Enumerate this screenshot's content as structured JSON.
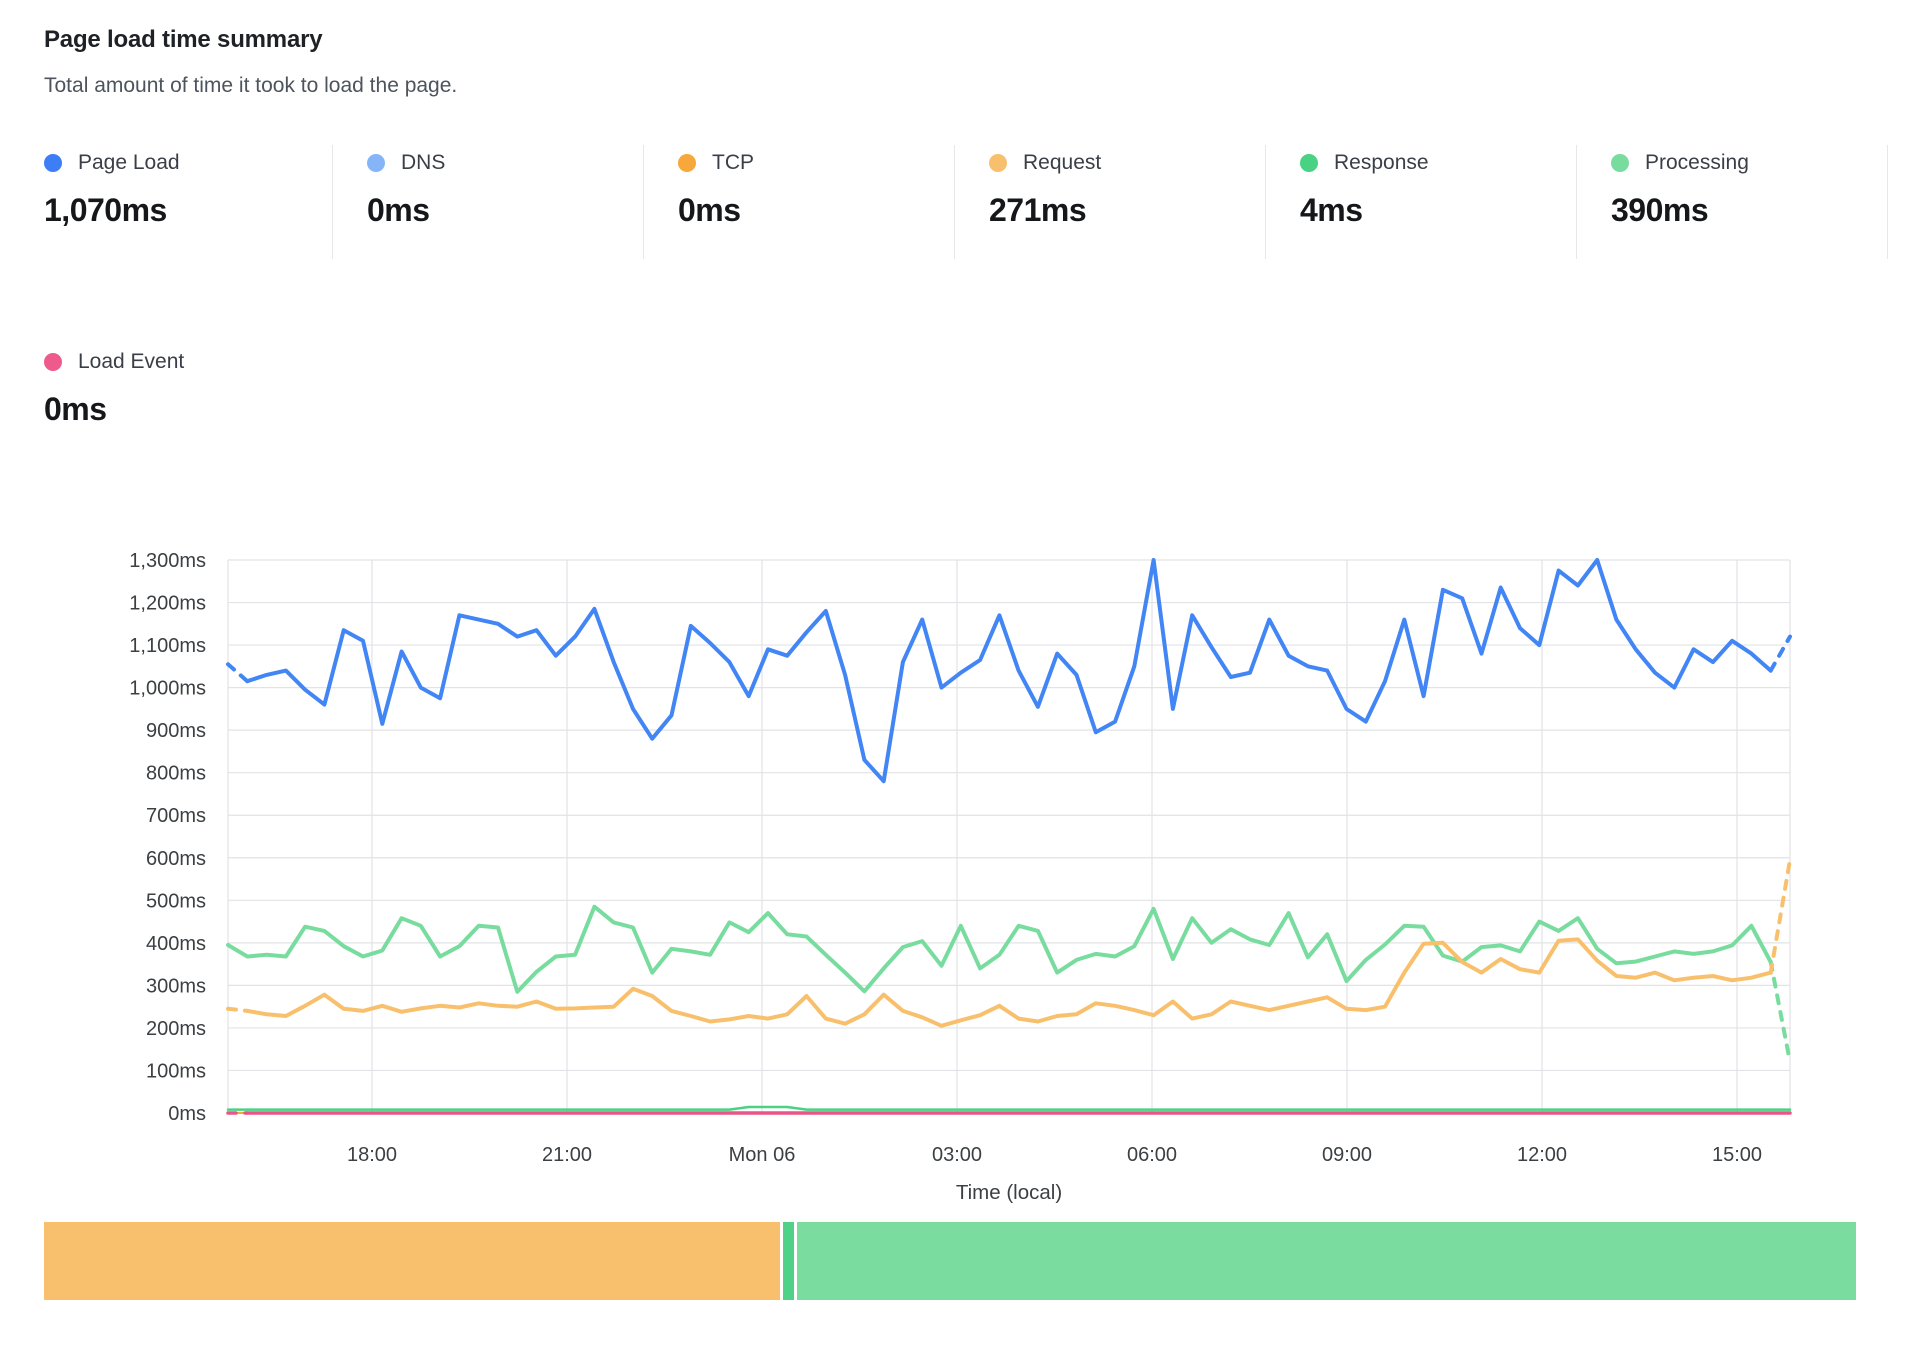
{
  "header": {
    "title": "Page load time summary",
    "subtitle": "Total amount of time it took to load the page."
  },
  "metrics": [
    {
      "id": "page_load",
      "label": "Page Load",
      "value": "1,070ms",
      "color": "#3d7ef6"
    },
    {
      "id": "dns",
      "label": "DNS",
      "value": "0ms",
      "color": "#85b5f8"
    },
    {
      "id": "tcp",
      "label": "TCP",
      "value": "0ms",
      "color": "#f6a83b"
    },
    {
      "id": "request",
      "label": "Request",
      "value": "271ms",
      "color": "#f8c06c"
    },
    {
      "id": "response",
      "label": "Response",
      "value": "4ms",
      "color": "#49d184"
    },
    {
      "id": "processing",
      "label": "Processing",
      "value": "390ms",
      "color": "#79dc9f"
    }
  ],
  "load_event_metric": {
    "id": "load_event",
    "label": "Load Event",
    "value": "0ms",
    "color": "#ee5a8b"
  },
  "chart_data": {
    "type": "line",
    "title": "",
    "xlabel": "Time (local)",
    "ylabel": "",
    "ylim": [
      0,
      1300
    ],
    "grid": true,
    "y_tick_labels": [
      "0ms",
      "100ms",
      "200ms",
      "300ms",
      "400ms",
      "500ms",
      "600ms",
      "700ms",
      "800ms",
      "900ms",
      "1,000ms",
      "1,100ms",
      "1,200ms",
      "1,300ms"
    ],
    "x_tick_labels": [
      "18:00",
      "21:00",
      "Mon 06",
      "03:00",
      "06:00",
      "09:00",
      "12:00",
      "15:00"
    ],
    "series": [
      {
        "name": "dns",
        "label": "DNS",
        "color": "#85b5f8",
        "width": 2,
        "dash_start": 0,
        "dash_end": 0,
        "constant": 0
      },
      {
        "name": "tcp",
        "label": "TCP",
        "color": "#f6a83b",
        "width": 2,
        "dash_start": 0,
        "dash_end": 0,
        "constant": 0
      },
      {
        "name": "page_load",
        "label": "Page Load",
        "color": "#4285f4",
        "width": 4,
        "dash_start": 1,
        "dash_end": 1,
        "values": [
          1055,
          1015,
          1030,
          1040,
          995,
          960,
          1135,
          1110,
          915,
          1085,
          1000,
          975,
          1170,
          1160,
          1150,
          1120,
          1135,
          1075,
          1120,
          1185,
          1060,
          950,
          880,
          935,
          1145,
          1105,
          1060,
          980,
          1090,
          1075,
          1130,
          1180,
          1030,
          830,
          780,
          1060,
          1160,
          1000,
          1035,
          1065,
          1170,
          1040,
          955,
          1080,
          1030,
          895,
          920,
          1050,
          1300,
          950,
          1170,
          1095,
          1025,
          1035,
          1160,
          1075,
          1050,
          1040,
          950,
          920,
          1015,
          1160,
          980,
          1230,
          1210,
          1080,
          1235,
          1140,
          1100,
          1275,
          1240,
          1300,
          1160,
          1090,
          1035,
          1000,
          1090,
          1060,
          1110,
          1080,
          1040,
          1120
        ]
      },
      {
        "name": "processing",
        "label": "Processing",
        "color": "#79dc9f",
        "width": 4,
        "dash_start": 0,
        "dash_end": 1,
        "values": [
          395,
          368,
          372,
          368,
          438,
          428,
          392,
          368,
          382,
          458,
          440,
          368,
          392,
          440,
          436,
          285,
          332,
          368,
          372,
          485,
          448,
          436,
          330,
          386,
          380,
          372,
          448,
          425,
          470,
          420,
          415,
          372,
          330,
          286,
          340,
          390,
          404,
          346,
          440,
          340,
          372,
          440,
          428,
          330,
          360,
          374,
          368,
          392,
          480,
          362,
          458,
          400,
          432,
          408,
          395,
          470,
          366,
          420,
          310,
          360,
          396,
          440,
          438,
          370,
          356,
          390,
          394,
          380,
          450,
          428,
          458,
          386,
          352,
          356,
          368,
          380,
          374,
          380,
          394,
          440,
          355,
          120
        ]
      },
      {
        "name": "request",
        "label": "Request",
        "color": "#f8c06c",
        "width": 4,
        "dash_start": 1,
        "dash_end": 1,
        "values": [
          245,
          240,
          232,
          228,
          252,
          278,
          245,
          240,
          252,
          238,
          246,
          252,
          248,
          258,
          252,
          250,
          262,
          245,
          246,
          248,
          250,
          292,
          275,
          240,
          228,
          215,
          220,
          228,
          222,
          232,
          275,
          222,
          210,
          232,
          278,
          240,
          225,
          205,
          218,
          230,
          252,
          222,
          215,
          228,
          232,
          258,
          252,
          242,
          230,
          262,
          222,
          232,
          262,
          252,
          242,
          252,
          262,
          272,
          245,
          242,
          250,
          330,
          398,
          400,
          355,
          330,
          362,
          338,
          330,
          405,
          408,
          358,
          322,
          318,
          330,
          312,
          318,
          322,
          312,
          318,
          330,
          595
        ]
      },
      {
        "name": "response",
        "label": "Response",
        "color": "#49d184",
        "width": 2.5,
        "dash_start": 0,
        "dash_end": 0,
        "values": [
          8,
          8,
          8,
          8,
          8,
          8,
          8,
          8,
          8,
          8,
          8,
          8,
          8,
          8,
          8,
          8,
          8,
          8,
          8,
          8,
          8,
          8,
          8,
          8,
          8,
          8,
          8,
          14,
          14,
          14,
          8,
          8,
          8,
          8,
          8,
          8,
          8,
          8,
          8,
          8,
          8,
          8,
          8,
          8,
          8,
          8,
          8,
          8,
          8,
          8,
          8,
          8,
          8,
          8,
          8,
          8,
          8,
          8,
          8,
          8,
          8,
          8,
          8,
          8,
          8,
          8,
          8,
          8,
          8,
          8,
          8,
          8,
          8,
          8,
          8,
          8,
          8,
          8,
          8,
          8,
          8,
          8
        ]
      },
      {
        "name": "load_event",
        "label": "Load Event",
        "color": "#ea5585",
        "width": 3.5,
        "dash_start": 1,
        "dash_end": 0,
        "values": [
          0,
          0,
          0,
          0,
          0,
          0,
          0,
          0,
          0,
          0,
          0,
          0,
          0,
          0,
          0,
          0,
          0,
          0,
          0,
          0,
          0,
          0,
          0,
          0,
          0,
          0,
          0,
          0,
          0,
          0,
          0,
          0,
          0,
          0,
          0,
          0,
          0,
          0,
          0,
          0,
          0,
          0,
          0,
          0,
          0,
          0,
          0,
          0,
          0,
          0,
          0,
          0,
          0,
          0,
          0,
          0,
          0,
          0,
          0,
          0,
          0,
          0,
          0,
          0,
          0,
          0,
          0,
          0,
          0,
          0,
          0,
          0,
          0,
          0,
          0,
          0,
          0,
          0,
          0,
          0,
          0,
          0
        ]
      }
    ]
  },
  "stacked_bar": {
    "segments": [
      {
        "name": "request",
        "color": "#f8c06c",
        "value": 271
      },
      {
        "name": "response",
        "color": "#4fd287",
        "value": 4
      },
      {
        "name": "processing",
        "color": "#7bdca0",
        "value": 390
      }
    ]
  }
}
